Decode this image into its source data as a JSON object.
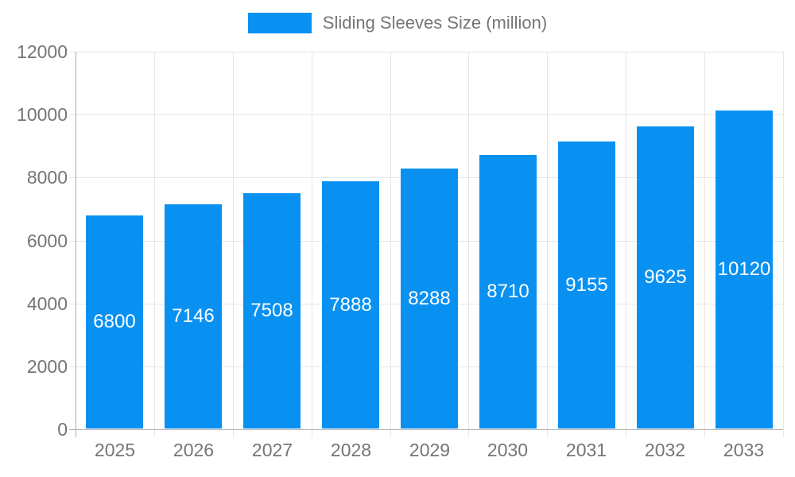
{
  "legend": {
    "label": "Sliding Sleeves Size (million)"
  },
  "colors": {
    "bar": "#0991f2",
    "value_label": "#ffffff",
    "tick_label": "#757575",
    "legend_label": "#757575",
    "axis_line": "#adadad",
    "grid_line": "#e6e6e6",
    "background": "#ffffff"
  },
  "chart_data": {
    "type": "bar",
    "title": "",
    "xlabel": "",
    "ylabel": "",
    "categories": [
      "2025",
      "2026",
      "2027",
      "2028",
      "2029",
      "2030",
      "2031",
      "2032",
      "2033"
    ],
    "series": [
      {
        "name": "Sliding Sleeves Size (million)",
        "values": [
          6800,
          7146,
          7508,
          7888,
          8288,
          8710,
          9155,
          9625,
          10120
        ]
      }
    ],
    "value_labels_shown": true,
    "ylim": [
      0,
      12000
    ],
    "ytick_step": 2000,
    "yticks": [
      0,
      2000,
      4000,
      6000,
      8000,
      10000,
      12000
    ],
    "grid": true,
    "legend_position": "top-center"
  }
}
